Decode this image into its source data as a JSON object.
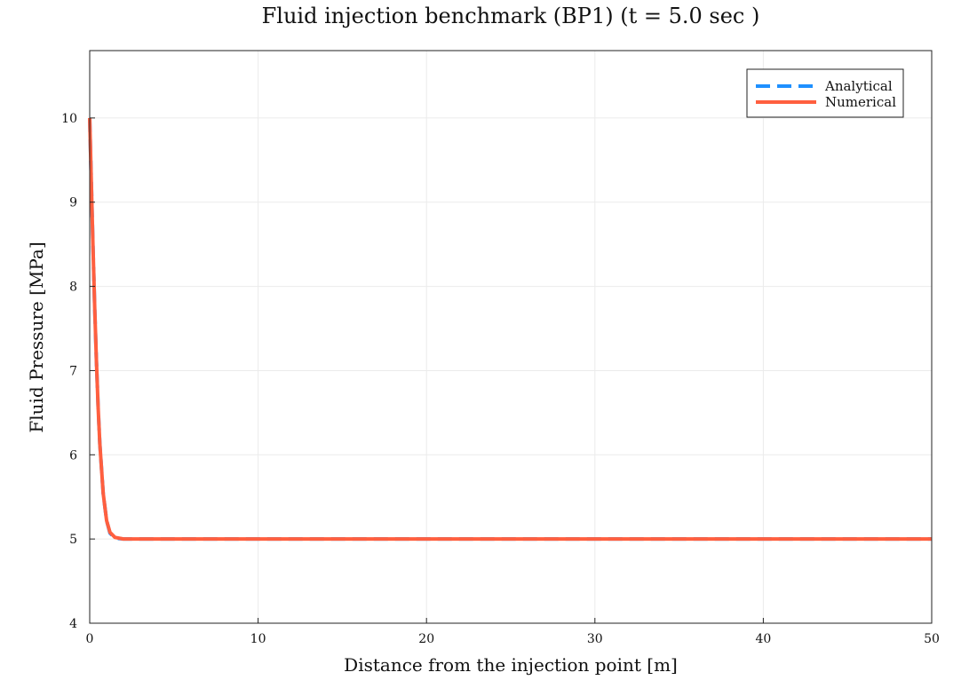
{
  "chart_data": {
    "type": "line",
    "title": "Fluid injection benchmark (BP1) (t = 5.0 sec )",
    "xlabel": "Distance from the injection point [m]",
    "ylabel": "Fluid Pressure [MPa]",
    "xlim": [
      0,
      50
    ],
    "ylim": [
      4,
      10.8
    ],
    "xticks": [
      "0",
      "10",
      "20",
      "30",
      "40",
      "50"
    ],
    "yticks": [
      "4",
      "5",
      "6",
      "7",
      "8",
      "9",
      "10"
    ],
    "grid": true,
    "legend_position": "top-right",
    "series": [
      {
        "name": "Analytical",
        "color": "#1E90FF",
        "style": "dashed",
        "x": [
          0,
          0.1,
          0.2,
          0.3,
          0.4,
          0.5,
          0.6,
          0.8,
          1.0,
          1.2,
          1.5,
          2,
          3,
          5,
          10,
          20,
          30,
          40,
          50
        ],
        "y": [
          10,
          9.2,
          8.43,
          7.72,
          7.1,
          6.56,
          6.13,
          5.54,
          5.22,
          5.07,
          5.01,
          5.0,
          5.0,
          5.0,
          5.0,
          5.0,
          5.0,
          5.0,
          5.0
        ]
      },
      {
        "name": "Numerical",
        "color": "#FF5F3F",
        "style": "solid",
        "x": [
          0,
          0.1,
          0.2,
          0.3,
          0.4,
          0.5,
          0.6,
          0.8,
          1.0,
          1.2,
          1.5,
          2,
          3,
          5,
          10,
          20,
          30,
          40,
          50
        ],
        "y": [
          10,
          9.2,
          8.43,
          7.72,
          7.1,
          6.56,
          6.13,
          5.54,
          5.22,
          5.08,
          5.02,
          5.0,
          5.0,
          5.0,
          5.0,
          5.0,
          5.0,
          5.0,
          5.0
        ]
      }
    ]
  }
}
